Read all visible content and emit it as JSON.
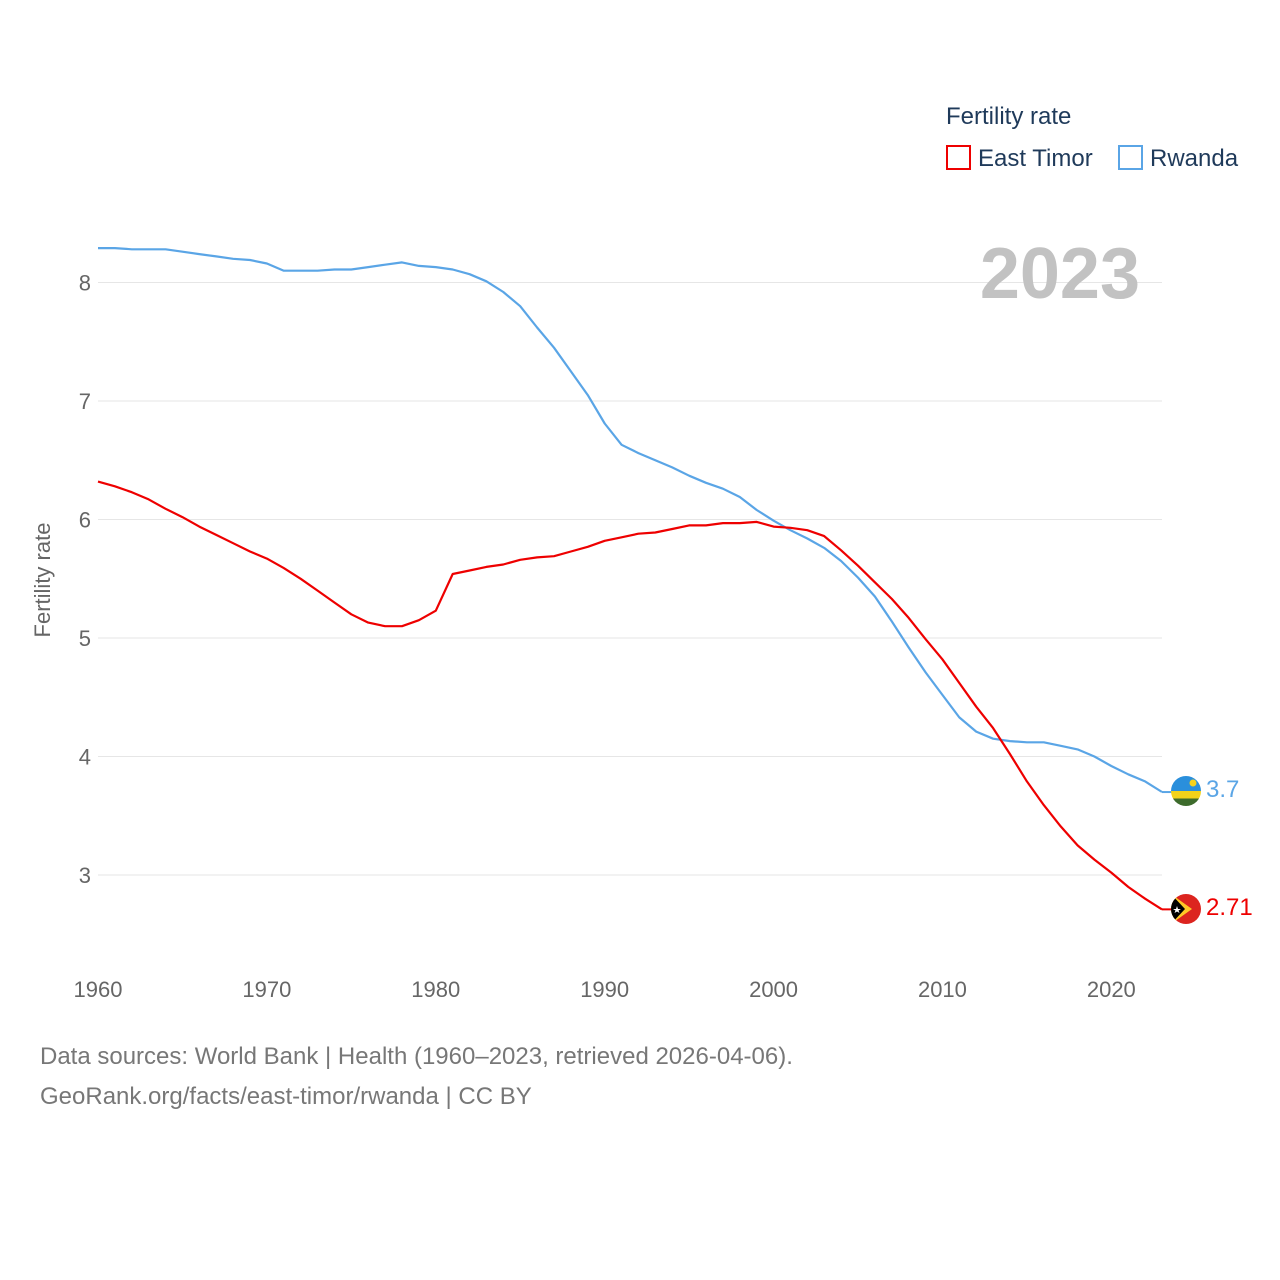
{
  "chart_data": {
    "type": "line",
    "title": "Fertility rate",
    "ylabel": "Fertility rate",
    "xlabel": "",
    "year_label": "2023",
    "xlim": [
      1960,
      2023
    ],
    "ylim": [
      2.4,
      8.6
    ],
    "yticks": [
      3,
      4,
      5,
      6,
      7,
      8
    ],
    "xticks": [
      1960,
      1970,
      1980,
      1990,
      2000,
      2010,
      2020
    ],
    "legend_position": "top-right",
    "series": [
      {
        "name": "East Timor",
        "color": "#ee0000",
        "end_label": "2.71",
        "x": [
          1960,
          1961,
          1962,
          1963,
          1964,
          1965,
          1966,
          1967,
          1968,
          1969,
          1970,
          1971,
          1972,
          1973,
          1974,
          1975,
          1976,
          1977,
          1978,
          1979,
          1980,
          1981,
          1982,
          1983,
          1984,
          1985,
          1986,
          1987,
          1988,
          1989,
          1990,
          1991,
          1992,
          1993,
          1994,
          1995,
          1996,
          1997,
          1998,
          1999,
          2000,
          2001,
          2002,
          2003,
          2004,
          2005,
          2006,
          2007,
          2008,
          2009,
          2010,
          2011,
          2012,
          2013,
          2014,
          2015,
          2016,
          2017,
          2018,
          2019,
          2020,
          2021,
          2022,
          2023
        ],
        "values": [
          6.32,
          6.28,
          6.23,
          6.17,
          6.09,
          6.02,
          5.94,
          5.87,
          5.8,
          5.73,
          5.67,
          5.59,
          5.5,
          5.4,
          5.3,
          5.2,
          5.13,
          5.1,
          5.1,
          5.15,
          5.23,
          5.54,
          5.57,
          5.6,
          5.62,
          5.66,
          5.68,
          5.69,
          5.73,
          5.77,
          5.82,
          5.85,
          5.88,
          5.89,
          5.92,
          5.95,
          5.95,
          5.97,
          5.97,
          5.98,
          5.94,
          5.93,
          5.91,
          5.86,
          5.74,
          5.61,
          5.47,
          5.33,
          5.17,
          4.99,
          4.82,
          4.62,
          4.42,
          4.24,
          4.02,
          3.79,
          3.59,
          3.41,
          3.25,
          3.13,
          3.02,
          2.9,
          2.8,
          2.71
        ]
      },
      {
        "name": "Rwanda",
        "color": "#5aa5e6",
        "end_label": "3.7",
        "x": [
          1960,
          1961,
          1962,
          1963,
          1964,
          1965,
          1966,
          1967,
          1968,
          1969,
          1970,
          1971,
          1972,
          1973,
          1974,
          1975,
          1976,
          1977,
          1978,
          1979,
          1980,
          1981,
          1982,
          1983,
          1984,
          1985,
          1986,
          1987,
          1988,
          1989,
          1990,
          1991,
          1992,
          1993,
          1994,
          1995,
          1996,
          1997,
          1998,
          1999,
          2000,
          2001,
          2002,
          2003,
          2004,
          2005,
          2006,
          2007,
          2008,
          2009,
          2010,
          2011,
          2012,
          2013,
          2014,
          2015,
          2016,
          2017,
          2018,
          2019,
          2020,
          2021,
          2022,
          2023
        ],
        "values": [
          8.29,
          8.29,
          8.28,
          8.28,
          8.28,
          8.26,
          8.24,
          8.22,
          8.2,
          8.19,
          8.16,
          8.1,
          8.1,
          8.1,
          8.11,
          8.11,
          8.13,
          8.15,
          8.17,
          8.14,
          8.13,
          8.11,
          8.07,
          8.01,
          7.92,
          7.8,
          7.62,
          7.45,
          7.25,
          7.05,
          6.81,
          6.63,
          6.56,
          6.5,
          6.44,
          6.37,
          6.31,
          6.26,
          6.19,
          6.08,
          5.99,
          5.91,
          5.84,
          5.76,
          5.65,
          5.51,
          5.35,
          5.14,
          4.92,
          4.71,
          4.52,
          4.33,
          4.21,
          4.15,
          4.13,
          4.12,
          4.12,
          4.09,
          4.06,
          4.0,
          3.92,
          3.85,
          3.79,
          3.7
        ]
      }
    ]
  },
  "footer": {
    "line1": "Data sources: World Bank | Health (1960–2023, retrieved 2026-04-06).",
    "line2": "GeoRank.org/facts/east-timor/rwanda | CC BY"
  }
}
